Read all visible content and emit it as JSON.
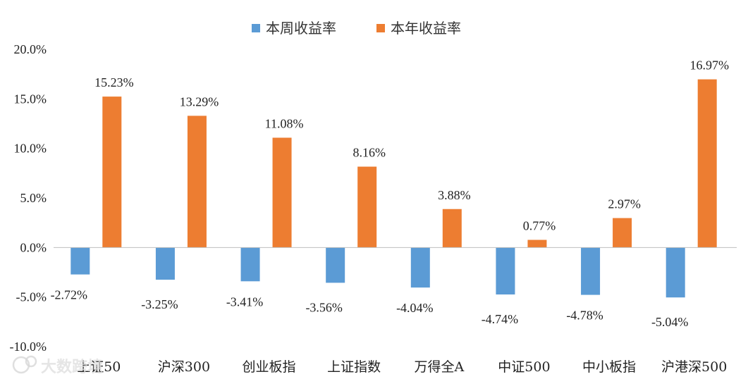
{
  "chart_data": {
    "type": "bar",
    "categories": [
      "上证50",
      "沪深300",
      "创业板指",
      "上证指数",
      "万得全A",
      "中证500",
      "中小板指",
      "沪港深500"
    ],
    "series": [
      {
        "name": "本周收益率",
        "color": "#5b9bd5",
        "values": [
          -2.72,
          -3.25,
          -3.41,
          -3.56,
          -4.04,
          -4.74,
          -4.78,
          -5.04
        ],
        "labels": [
          "-2.72%",
          "-3.25%",
          "-3.41%",
          "-3.56%",
          "-4.04%",
          "-4.74%",
          "-4.78%",
          "-5.04%"
        ]
      },
      {
        "name": "本年收益率",
        "color": "#ed7d31",
        "values": [
          15.23,
          13.29,
          11.08,
          8.16,
          3.88,
          0.77,
          2.97,
          16.97
        ],
        "labels": [
          "15.23%",
          "13.29%",
          "11.08%",
          "8.16%",
          "3.88%",
          "0.77%",
          "2.97%",
          "16.97%"
        ]
      }
    ],
    "ylim": [
      -10,
      20
    ],
    "yticks": [
      20,
      15,
      10,
      5,
      0,
      -5,
      -10
    ],
    "yticklabels": [
      "20.0%",
      "15.0%",
      "10.0%",
      "5.0%",
      "0.0%",
      "-5.0%",
      "-10.0%"
    ],
    "legend_position": "top-center",
    "grid": false
  },
  "watermark": {
    "text": "大数跨境",
    "icon": "logo-icon"
  }
}
